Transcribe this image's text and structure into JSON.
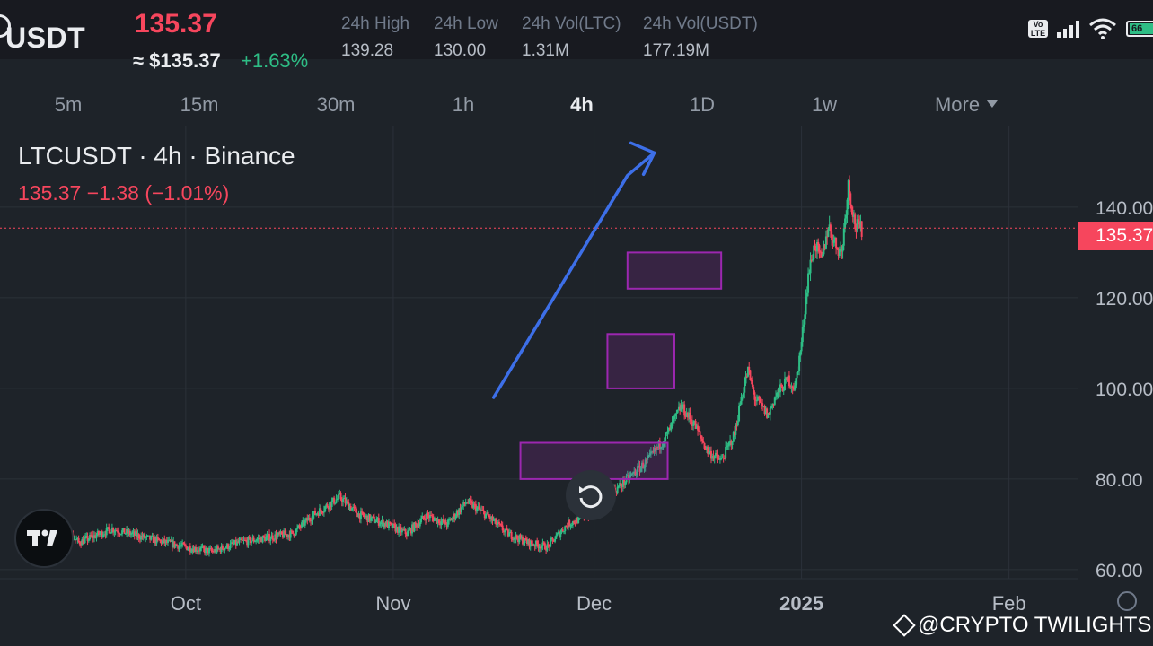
{
  "header": {
    "pair": "USDT",
    "last_price": "135.37",
    "usd_price": "≈ $135.37",
    "change_pct": "+1.63%",
    "stats": [
      {
        "label": "24h High",
        "value": "139.28"
      },
      {
        "label": "24h Low",
        "value": "130.00"
      },
      {
        "label": "24h Vol(LTC)",
        "value": "1.31M"
      },
      {
        "label": "24h Vol(USDT)",
        "value": "177.19M"
      }
    ]
  },
  "status_bar": {
    "volte_label": "Vo LTE",
    "battery": "66"
  },
  "timeframes": {
    "items": [
      "5m",
      "15m",
      "30m",
      "1h",
      "4h",
      "1D",
      "1w"
    ],
    "active": "4h",
    "more_label": "More"
  },
  "legend": {
    "title": "LTCUSDT · 4h · Binance",
    "price_line": "135.37  −1.38 (−1.01%)"
  },
  "chart_data": {
    "type": "candlestick",
    "symbol": "LTCUSDT",
    "interval": "4h",
    "exchange": "Binance",
    "last_price": 135.37,
    "last_price_label": "135.37",
    "ylim": [
      58,
      158
    ],
    "yticks": [
      60,
      80,
      100,
      120,
      140
    ],
    "ytick_labels": [
      "60.00",
      "80.00",
      "100.00",
      "120.00",
      "140.00"
    ],
    "xticks": [
      {
        "label": "Oct",
        "date": "2024-10-01"
      },
      {
        "label": "Nov",
        "date": "2024-11-01"
      },
      {
        "label": "Dec",
        "date": "2024-12-01"
      },
      {
        "label": "2025",
        "date": "2025-01-01"
      },
      {
        "label": "Feb",
        "date": "2025-02-01"
      }
    ],
    "xlim": [
      "2024-09-07",
      "2025-02-15"
    ],
    "approx_closes": [
      {
        "date": "2024-09-08",
        "close": 66
      },
      {
        "date": "2024-09-12",
        "close": 70
      },
      {
        "date": "2024-09-15",
        "close": 66
      },
      {
        "date": "2024-09-20",
        "close": 69
      },
      {
        "date": "2024-09-25",
        "close": 67
      },
      {
        "date": "2024-10-01",
        "close": 65
      },
      {
        "date": "2024-10-05",
        "close": 64
      },
      {
        "date": "2024-10-09",
        "close": 66
      },
      {
        "date": "2024-10-13",
        "close": 67
      },
      {
        "date": "2024-10-17",
        "close": 68
      },
      {
        "date": "2024-10-20",
        "close": 72
      },
      {
        "date": "2024-10-24",
        "close": 76
      },
      {
        "date": "2024-10-27",
        "close": 72
      },
      {
        "date": "2024-10-31",
        "close": 70
      },
      {
        "date": "2024-11-03",
        "close": 68
      },
      {
        "date": "2024-11-06",
        "close": 72
      },
      {
        "date": "2024-11-09",
        "close": 70
      },
      {
        "date": "2024-11-12",
        "close": 75
      },
      {
        "date": "2024-11-15",
        "close": 72
      },
      {
        "date": "2024-11-18",
        "close": 68
      },
      {
        "date": "2024-11-21",
        "close": 66
      },
      {
        "date": "2024-11-24",
        "close": 65
      },
      {
        "date": "2024-11-27",
        "close": 70
      },
      {
        "date": "2024-11-30",
        "close": 72
      },
      {
        "date": "2024-12-03",
        "close": 76
      },
      {
        "date": "2024-12-06",
        "close": 80
      },
      {
        "date": "2024-12-09",
        "close": 84
      },
      {
        "date": "2024-12-12",
        "close": 90
      },
      {
        "date": "2024-12-14",
        "close": 96
      },
      {
        "date": "2024-12-16",
        "close": 92
      },
      {
        "date": "2024-12-18",
        "close": 86
      },
      {
        "date": "2024-12-20",
        "close": 84
      },
      {
        "date": "2024-12-22",
        "close": 90
      },
      {
        "date": "2024-12-23",
        "close": 98
      },
      {
        "date": "2024-12-24",
        "close": 104
      },
      {
        "date": "2024-12-25",
        "close": 98
      },
      {
        "date": "2024-12-26",
        "close": 96
      },
      {
        "date": "2024-12-27",
        "close": 94
      },
      {
        "date": "2024-12-28",
        "close": 98
      },
      {
        "date": "2024-12-29",
        "close": 100
      },
      {
        "date": "2024-12-30",
        "close": 102
      },
      {
        "date": "2024-12-31",
        "close": 100
      },
      {
        "date": "2025-01-01",
        "close": 110
      },
      {
        "date": "2025-01-02",
        "close": 125
      },
      {
        "date": "2025-01-03",
        "close": 132
      },
      {
        "date": "2025-01-04",
        "close": 128
      },
      {
        "date": "2025-01-05",
        "close": 136
      },
      {
        "date": "2025-01-06",
        "close": 132
      },
      {
        "date": "2025-01-07",
        "close": 130
      },
      {
        "date": "2025-01-08",
        "close": 145
      },
      {
        "date": "2025-01-09",
        "close": 136
      },
      {
        "date": "2025-01-10",
        "close": 135
      }
    ],
    "annotations": {
      "trend_arrow": {
        "points": [
          {
            "date": "2024-11-16",
            "price": 98
          },
          {
            "date": "2024-12-06",
            "price": 147
          },
          {
            "date": "2024-12-10",
            "price": 152
          }
        ],
        "color": "#3d6fe8"
      },
      "zones": [
        {
          "date_from": "2024-12-06",
          "date_to": "2024-12-20",
          "price_low": 122,
          "price_high": 130,
          "color": "#9c27b0"
        },
        {
          "date_from": "2024-12-03",
          "date_to": "2024-12-13",
          "price_low": 100,
          "price_high": 112,
          "color": "#9c27b0"
        },
        {
          "date_from": "2024-11-20",
          "date_to": "2024-12-12",
          "price_low": 80,
          "price_high": 88,
          "color": "#9c27b0"
        }
      ]
    },
    "colors": {
      "up": "#2ebd85",
      "down": "#f6465d",
      "grid": "#2b3139",
      "price_line": "#f6465d"
    }
  },
  "watermark": "@CRYPTO TWILIGHTS"
}
